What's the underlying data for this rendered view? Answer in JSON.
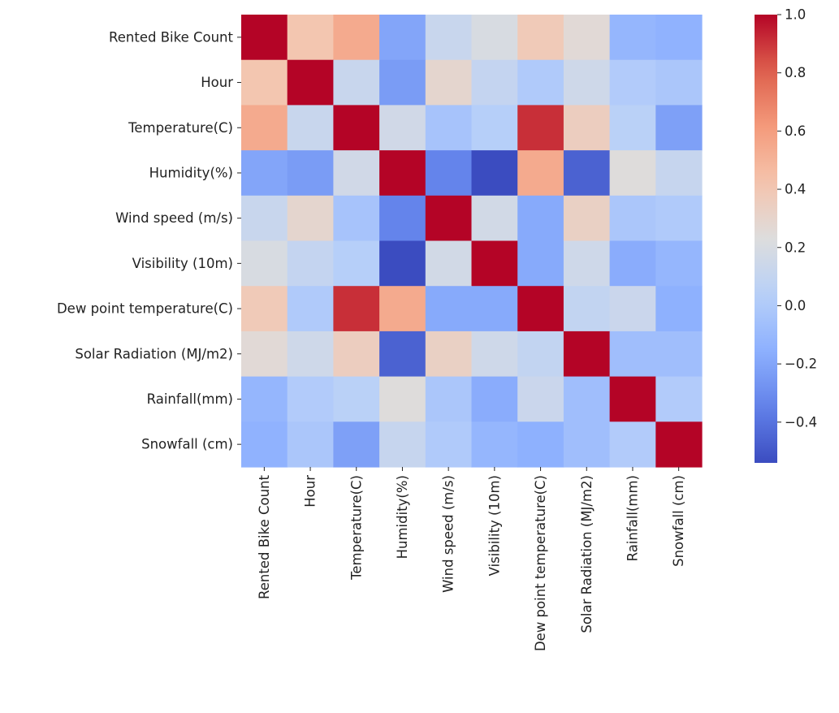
{
  "chart_data": {
    "type": "heatmap",
    "title": "",
    "xlabel": "",
    "ylabel": "",
    "colormap": "coolwarm",
    "vmin": -0.54,
    "vmax": 1.0,
    "labels": [
      "Rented Bike Count",
      "Hour",
      "Temperature(C)",
      "Humidity(%)",
      "Wind speed (m/s)",
      "Visibility (10m)",
      "Dew point temperature(C)",
      "Solar Radiation (MJ/m2)",
      "Rainfall(mm)",
      "Snowfall (cm)"
    ],
    "matrix": [
      [
        1.0,
        0.41,
        0.54,
        -0.2,
        0.12,
        0.2,
        0.38,
        0.26,
        -0.12,
        -0.14
      ],
      [
        0.41,
        1.0,
        0.12,
        -0.24,
        0.29,
        0.1,
        0.0,
        0.15,
        0.01,
        -0.02
      ],
      [
        0.54,
        0.12,
        1.0,
        0.16,
        -0.04,
        0.03,
        0.91,
        0.35,
        0.05,
        -0.22
      ],
      [
        -0.2,
        -0.24,
        0.16,
        1.0,
        -0.34,
        -0.54,
        0.54,
        -0.46,
        0.24,
        0.11
      ],
      [
        0.12,
        0.29,
        -0.04,
        -0.34,
        1.0,
        0.17,
        -0.18,
        0.33,
        -0.02,
        -0.0
      ],
      [
        0.2,
        0.1,
        0.03,
        -0.54,
        0.17,
        1.0,
        -0.18,
        0.15,
        -0.17,
        -0.12
      ],
      [
        0.38,
        0.0,
        0.91,
        0.54,
        -0.18,
        -0.18,
        1.0,
        0.09,
        0.13,
        -0.15
      ],
      [
        0.26,
        0.15,
        0.35,
        -0.46,
        0.33,
        0.15,
        0.09,
        1.0,
        -0.07,
        -0.07
      ],
      [
        -0.12,
        0.01,
        0.05,
        0.24,
        -0.02,
        -0.17,
        0.13,
        -0.07,
        1.0,
        0.01
      ],
      [
        -0.14,
        -0.02,
        -0.22,
        0.11,
        -0.0,
        -0.12,
        -0.15,
        -0.07,
        0.01,
        1.0
      ]
    ],
    "colorbar_ticks": [
      "1.0",
      "0.8",
      "0.6",
      "0.4",
      "0.2",
      "0.0",
      "−0.2",
      "−0.4"
    ],
    "colorbar_tick_values": [
      1.0,
      0.8,
      0.6,
      0.4,
      0.2,
      0.0,
      -0.2,
      -0.4
    ]
  }
}
